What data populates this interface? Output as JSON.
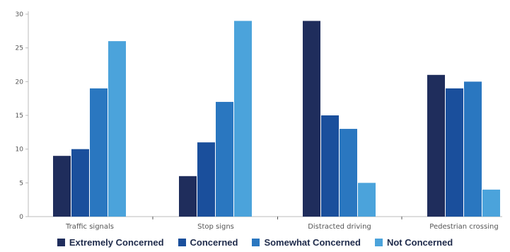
{
  "chart_data": {
    "type": "bar",
    "title": "",
    "xlabel": "",
    "ylabel": "",
    "categories": [
      "Traffic signals",
      "Stop signs",
      "Distracted driving",
      "Pedestrian crossing"
    ],
    "series": [
      {
        "name": "Extremely Concerned",
        "color": "#1f2d5c",
        "values": [
          9,
          6,
          29,
          21
        ]
      },
      {
        "name": "Concerned",
        "color": "#1a4f9c",
        "values": [
          10,
          11,
          15,
          19
        ]
      },
      {
        "name": "Somewhat Concerned",
        "color": "#2a77c0",
        "values": [
          19,
          17,
          13,
          20
        ]
      },
      {
        "name": "Not Concerned",
        "color": "#4ba3db",
        "values": [
          26,
          29,
          5,
          4
        ]
      }
    ],
    "ylim": [
      0,
      30
    ],
    "yticks": [
      0,
      5,
      10,
      15,
      20,
      25,
      30
    ],
    "grid": false,
    "legend": "bottom"
  }
}
